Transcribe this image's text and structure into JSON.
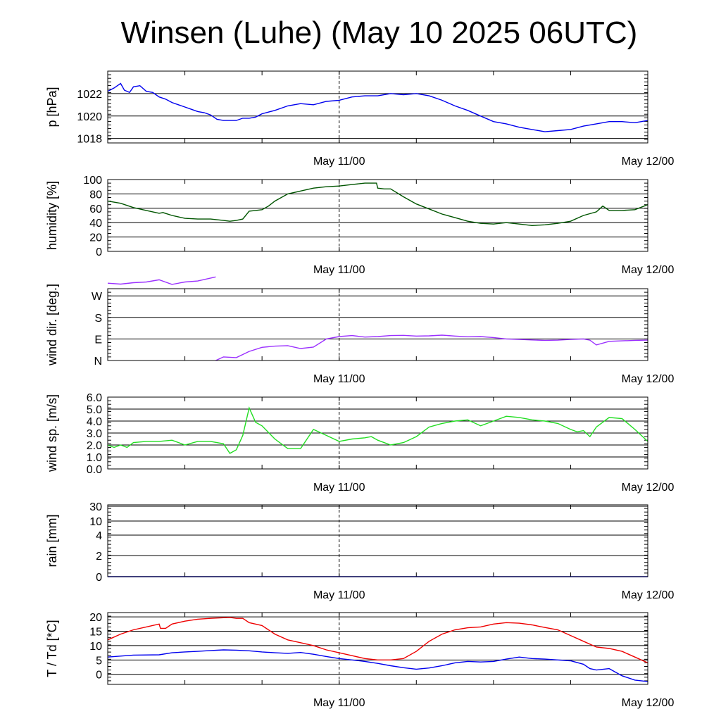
{
  "chart_title": "Winsen (Luhe) (May 10 2025 06UTC)",
  "chart_data": [
    {
      "type": "line",
      "ylabel": "p [hPa]",
      "ylim": [
        1017.6,
        1024.0
      ],
      "yticks": [
        1018,
        1020,
        1022
      ],
      "xlim": [
        0,
        42
      ],
      "xtick_labels": [
        {
          "x": 18,
          "label": "May 11/00"
        },
        {
          "x": 42,
          "label": "May 12/00"
        }
      ],
      "series": [
        {
          "color": "#0000ee",
          "x": [
            0,
            0.5,
            1,
            1.3,
            1.7,
            2,
            2.5,
            3,
            3.5,
            4,
            4.5,
            5,
            5.5,
            6,
            6.5,
            7,
            7.5,
            8,
            8.5,
            9,
            9.5,
            10,
            10.5,
            11,
            11.5,
            12,
            13,
            14,
            15,
            16,
            17,
            18,
            19,
            20,
            21,
            22,
            23,
            24,
            25,
            26,
            27,
            28,
            29,
            30,
            31,
            32,
            33,
            34,
            35,
            36,
            37,
            38,
            39,
            40,
            41,
            42
          ],
          "y": [
            1022.2,
            1022.5,
            1022.9,
            1022.3,
            1022.1,
            1022.6,
            1022.7,
            1022.2,
            1022.1,
            1021.7,
            1021.5,
            1021.2,
            1021.0,
            1020.8,
            1020.6,
            1020.4,
            1020.3,
            1020.1,
            1019.7,
            1019.6,
            1019.6,
            1019.6,
            1019.8,
            1019.8,
            1019.9,
            1020.2,
            1020.5,
            1020.9,
            1021.1,
            1021.0,
            1021.3,
            1021.4,
            1021.7,
            1021.8,
            1021.8,
            1022.0,
            1021.9,
            1022.0,
            1021.8,
            1021.4,
            1020.9,
            1020.5,
            1020.0,
            1019.5,
            1019.3,
            1019.0,
            1018.8,
            1018.6,
            1018.7,
            1018.8,
            1019.1,
            1019.3,
            1019.5,
            1019.5,
            1019.4,
            1019.6
          ]
        }
      ]
    },
    {
      "type": "line",
      "ylabel": "humidity [%]",
      "ylim": [
        0,
        100
      ],
      "yticks": [
        0,
        20,
        40,
        60,
        80,
        100
      ],
      "xlim": [
        0,
        42
      ],
      "xtick_labels": [
        {
          "x": 18,
          "label": "May 11/00"
        },
        {
          "x": 42,
          "label": "May 12/00"
        }
      ],
      "series": [
        {
          "color": "#005500",
          "x": [
            0,
            1,
            2,
            3,
            4,
            4.3,
            5,
            6,
            7,
            8,
            9,
            9.5,
            10,
            10.5,
            11,
            11.5,
            12,
            12.5,
            13,
            14,
            15,
            16,
            17,
            18,
            19,
            20,
            20.9,
            21,
            21.5,
            22,
            23,
            24,
            25,
            26,
            27,
            28,
            29,
            30,
            31,
            32,
            33,
            34,
            35,
            36,
            37,
            38,
            38.5,
            39,
            40,
            41,
            42
          ],
          "y": [
            70,
            67,
            61,
            57,
            53,
            54,
            50,
            46,
            45,
            45,
            43,
            42,
            43,
            45,
            56,
            57,
            58,
            63,
            70,
            80,
            84,
            88,
            90,
            91,
            93,
            95,
            95,
            88,
            87,
            87,
            76,
            66,
            59,
            52,
            47,
            42,
            39,
            38,
            40,
            38,
            36,
            37,
            39,
            42,
            50,
            55,
            63,
            57,
            57,
            58,
            65
          ]
        }
      ]
    },
    {
      "type": "line",
      "ylabel": "wind dir. [deg.]",
      "ylim": [
        0,
        300
      ],
      "yticks": [
        0,
        90,
        180,
        270
      ],
      "ytick_labels": [
        "N",
        "E",
        "S",
        "W"
      ],
      "xlim": [
        0,
        42
      ],
      "xtick_labels": [
        {
          "x": 18,
          "label": "May 11/00"
        },
        {
          "x": 42,
          "label": "May 12/00"
        }
      ],
      "series": [
        {
          "color": "#9b30ff",
          "x": [
            0,
            1,
            2,
            3,
            4,
            5,
            6,
            7,
            8.4
          ],
          "y": [
            323,
            319,
            325,
            328,
            337,
            318,
            328,
            332,
            349
          ]
        },
        {
          "color": "#9b30ff",
          "x": [
            8.4,
            9,
            10,
            11,
            12,
            13,
            14,
            15,
            16,
            17,
            18,
            19,
            20,
            21,
            22,
            23,
            24,
            25,
            26,
            27,
            28,
            29,
            30,
            31,
            32,
            33,
            34,
            35,
            36,
            37,
            37.5,
            38,
            39,
            40,
            41,
            42
          ],
          "y": [
            0,
            15,
            12,
            38,
            55,
            60,
            62,
            50,
            56,
            90,
            100,
            104,
            98,
            100,
            104,
            105,
            102,
            103,
            106,
            102,
            99,
            100,
            96,
            90,
            88,
            86,
            84,
            85,
            88,
            90,
            85,
            65,
            80,
            82,
            84,
            85
          ]
        }
      ]
    },
    {
      "type": "line",
      "ylabel": "wind sp. [m/s]",
      "ylim": [
        0,
        6
      ],
      "yticks": [
        0.0,
        1.0,
        2.0,
        3.0,
        4.0,
        5.0,
        6.0
      ],
      "ytick_labels": [
        "0.0",
        "1.0",
        "2.0",
        "3.0",
        "4.0",
        "5.0",
        "6.0"
      ],
      "xlim": [
        0,
        42
      ],
      "xtick_labels": [
        {
          "x": 18,
          "label": "May 11/00"
        },
        {
          "x": 42,
          "label": "May 12/00"
        }
      ],
      "series": [
        {
          "color": "#22dd22",
          "x": [
            0,
            0.5,
            1,
            1.5,
            2,
            3,
            4,
            5,
            6,
            7,
            8,
            9,
            9.5,
            10,
            10.5,
            11,
            11.5,
            12,
            13,
            14,
            15,
            16,
            17,
            18,
            19,
            20,
            20.5,
            21,
            22,
            23,
            24,
            25,
            26,
            27,
            28,
            29,
            30,
            31,
            32,
            33,
            34,
            35,
            36,
            36.5,
            37,
            37.5,
            38,
            39,
            40,
            41,
            42
          ],
          "y": [
            2.0,
            1.8,
            2.0,
            1.8,
            2.2,
            2.3,
            2.3,
            2.4,
            2.0,
            2.3,
            2.3,
            2.1,
            1.3,
            1.6,
            2.8,
            5.1,
            3.9,
            3.6,
            2.5,
            1.7,
            1.7,
            3.3,
            2.8,
            2.3,
            2.5,
            2.6,
            2.7,
            2.4,
            2.0,
            2.2,
            2.7,
            3.5,
            3.8,
            4.0,
            4.1,
            3.6,
            4.0,
            4.4,
            4.3,
            4.1,
            4.0,
            3.8,
            3.3,
            3.1,
            3.2,
            2.7,
            3.5,
            4.3,
            4.2,
            3.3,
            2.3
          ]
        }
      ]
    },
    {
      "type": "line",
      "ylabel": "rain [mm]",
      "yscale": "nonlinear",
      "yticks": [
        0,
        2,
        4,
        10,
        30
      ],
      "ytick_labels": [
        "0",
        "2",
        "4",
        "10",
        "30"
      ],
      "xlim": [
        0,
        42
      ],
      "xtick_labels": [
        {
          "x": 18,
          "label": "May 11/00"
        },
        {
          "x": 42,
          "label": "May 12/00"
        }
      ],
      "series": [
        {
          "color": "#0000ee",
          "x": [
            0,
            42
          ],
          "y": [
            0,
            0
          ]
        }
      ]
    },
    {
      "type": "line",
      "ylabel": "T / Td [*C]",
      "ylim": [
        -3.5,
        21.5
      ],
      "yticks": [
        0,
        5,
        10,
        15,
        20
      ],
      "xlim": [
        0,
        42
      ],
      "xtick_labels": [
        {
          "x": 18,
          "label": "May 11/00"
        },
        {
          "x": 42,
          "label": "May 12/00"
        }
      ],
      "series": [
        {
          "color": "#ee0000",
          "x": [
            0,
            1,
            2,
            3,
            4,
            4.1,
            4.5,
            5,
            6,
            7,
            8,
            9,
            9.5,
            10,
            10.5,
            11,
            12,
            13,
            14,
            15,
            16,
            17,
            18,
            19,
            20,
            21,
            21.5,
            22,
            23,
            24,
            25,
            26,
            27,
            28,
            29,
            30,
            31,
            32,
            33,
            34,
            35,
            36,
            37,
            38,
            39,
            40,
            41,
            42
          ],
          "y": [
            12,
            14,
            15.5,
            16.5,
            17.5,
            16,
            16,
            17.5,
            18.5,
            19.2,
            19.5,
            19.7,
            19.8,
            19.5,
            19.5,
            18,
            17,
            14,
            12,
            11,
            10,
            8.5,
            7.5,
            6.5,
            5.5,
            5,
            5,
            5,
            5.5,
            8,
            11.5,
            14,
            15.5,
            16.2,
            16.5,
            17.5,
            18,
            17.8,
            17.2,
            16.3,
            15.5,
            13.5,
            11.5,
            9.5,
            9,
            8,
            6,
            4
          ]
        },
        {
          "color": "#0000ee",
          "x": [
            0,
            2,
            4,
            5,
            6,
            7,
            8,
            9,
            10,
            11,
            12,
            13,
            14,
            15,
            16,
            17,
            18,
            19,
            20,
            21,
            22,
            23,
            24,
            25,
            26,
            27,
            28,
            29,
            30,
            31,
            32,
            33,
            34,
            35,
            36,
            37,
            37.5,
            38,
            39,
            40,
            41,
            42
          ],
          "y": [
            6,
            6.7,
            6.8,
            7.5,
            7.8,
            8.0,
            8.3,
            8.5,
            8.4,
            8.2,
            7.8,
            7.5,
            7.3,
            7.6,
            7.0,
            6.2,
            5.5,
            5.0,
            4.5,
            3.8,
            3.0,
            2.3,
            1.8,
            2.2,
            3.0,
            4.0,
            4.5,
            4.3,
            4.5,
            5.3,
            6.0,
            5.5,
            5.3,
            5.0,
            4.7,
            3.5,
            2.0,
            1.5,
            2.0,
            -0.5,
            -2.0,
            -2.5
          ]
        }
      ]
    }
  ]
}
